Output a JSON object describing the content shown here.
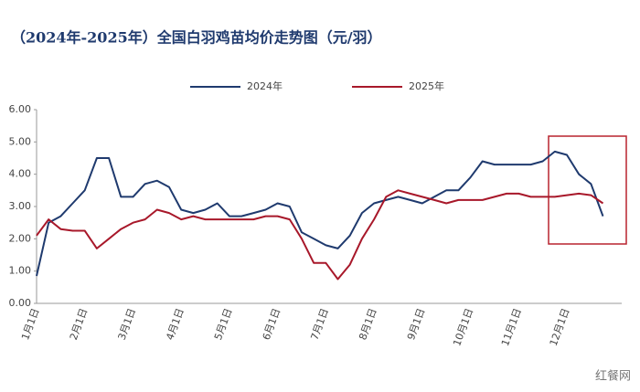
{
  "chart_data": {
    "type": "line",
    "title": "（2024年-2025年）全国白羽鸡苗均价走势图（元/羽）",
    "categories": [
      "1月1日",
      null,
      null,
      null,
      "2月1日",
      null,
      null,
      null,
      "3月1日",
      null,
      null,
      null,
      "4月1日",
      null,
      null,
      null,
      "5月1日",
      null,
      null,
      null,
      "6月1日",
      null,
      null,
      null,
      "7月1日",
      null,
      null,
      null,
      "8月1日",
      null,
      null,
      null,
      "9月1日",
      null,
      null,
      null,
      "10月1日",
      null,
      null,
      null,
      "11月1日",
      null,
      null,
      null,
      "12月1日",
      null,
      null,
      null
    ],
    "series": [
      {
        "name": "2024年",
        "color": "#1f3a6e",
        "values": [
          0.85,
          2.5,
          2.7,
          3.1,
          3.5,
          4.5,
          4.5,
          3.3,
          3.3,
          3.7,
          3.8,
          3.6,
          2.9,
          2.8,
          2.9,
          3.1,
          2.7,
          2.7,
          2.8,
          2.9,
          3.1,
          3.0,
          2.2,
          2.0,
          1.8,
          1.7,
          2.1,
          2.8,
          3.1,
          3.2,
          3.3,
          3.2,
          3.1,
          3.3,
          3.5,
          3.5,
          3.9,
          4.4,
          4.3,
          4.3,
          4.3,
          4.3,
          4.4,
          4.7,
          4.6,
          4.0,
          3.7,
          2.7
        ]
      },
      {
        "name": "2025年",
        "color": "#a8182a",
        "values": [
          2.1,
          2.6,
          2.3,
          2.25,
          2.25,
          1.7,
          2.0,
          2.3,
          2.5,
          2.6,
          2.9,
          2.8,
          2.6,
          2.7,
          2.6,
          2.6,
          2.6,
          2.6,
          2.6,
          2.7,
          2.7,
          2.6,
          2.0,
          1.25,
          1.25,
          0.75,
          1.2,
          2.0,
          2.6,
          3.3,
          3.5,
          3.4,
          3.3,
          3.2,
          3.1,
          3.2,
          3.2,
          3.2,
          3.3,
          3.4,
          3.4,
          3.3,
          3.3,
          3.3,
          3.35,
          3.4,
          3.35,
          3.1
        ]
      }
    ],
    "ylim": [
      0,
      6
    ],
    "yticks": [
      {
        "value": 0,
        "label": "0.00"
      },
      {
        "value": 1,
        "label": "1.00"
      },
      {
        "value": 2,
        "label": "2.00"
      },
      {
        "value": 3,
        "label": "3.00"
      },
      {
        "value": 4,
        "label": "4.00"
      },
      {
        "value": 5,
        "label": "5.00"
      },
      {
        "value": 6,
        "label": "6.00"
      }
    ],
    "grid": false,
    "legend": "top",
    "watermark": "红餐网"
  }
}
